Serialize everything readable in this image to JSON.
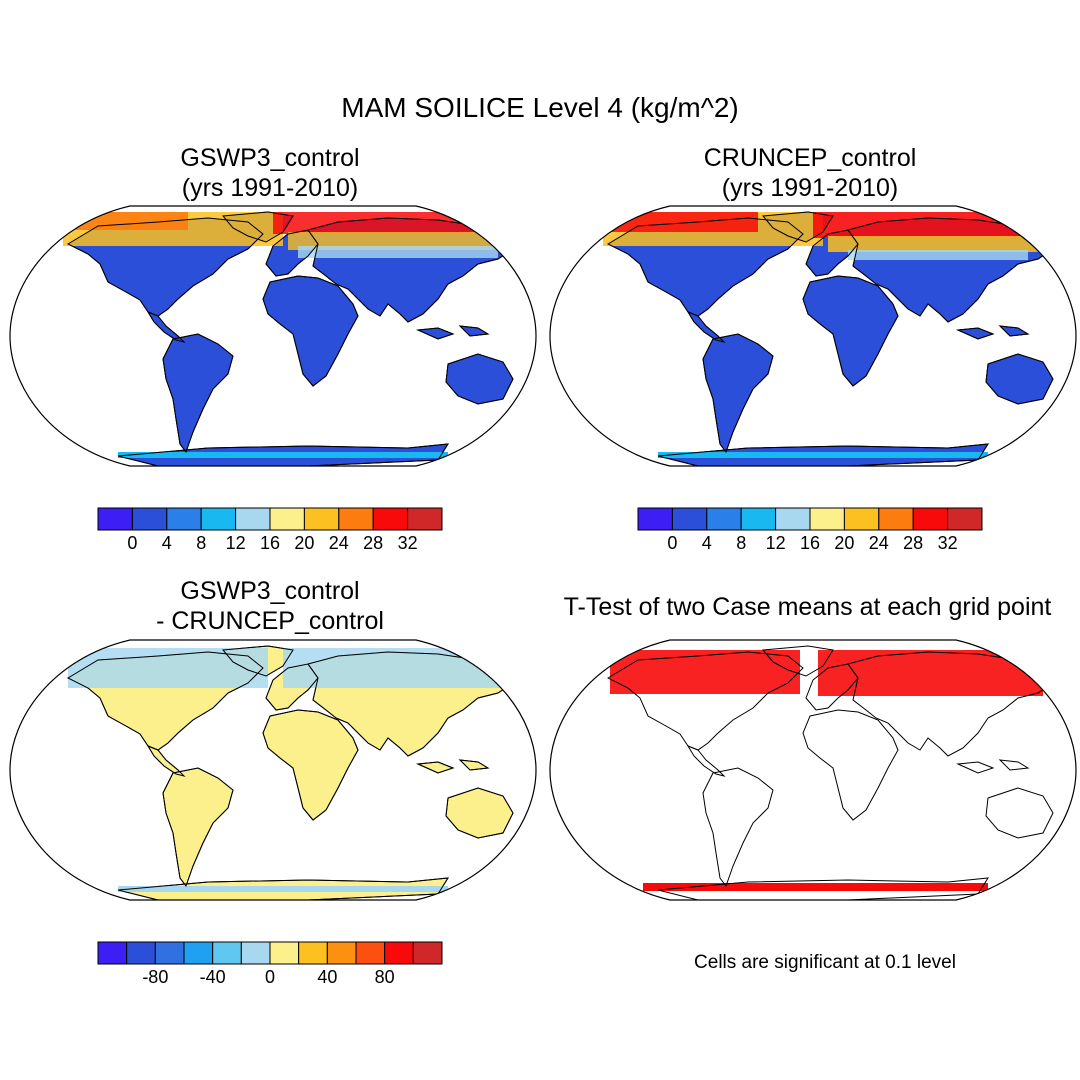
{
  "figure": {
    "title": "MAM SOILICE Level 4 (kg/m^2)"
  },
  "panels": [
    {
      "id": "p1",
      "title_line1": "GSWP3_control",
      "title_line2": "(yrs 1991-2010)"
    },
    {
      "id": "p2",
      "title_line1": "CRUNCEP_control",
      "title_line2": "(yrs 1991-2010)"
    },
    {
      "id": "p3",
      "title_line1": "GSWP3_control",
      "title_line2": "- CRUNCEP_control"
    },
    {
      "id": "p4",
      "title_line1": "T-Test of two Case means at each grid point",
      "note": "Cells are significant at 0.1 level"
    }
  ],
  "colorbars": {
    "absolute": {
      "colors": [
        "#3d1ff5",
        "#2b4fd8",
        "#2a80e8",
        "#1ab8f0",
        "#a8d8f0",
        "#fcf08c",
        "#fcc020",
        "#fc7c10",
        "#f80a0a",
        "#d02828"
      ],
      "labels": [
        "0",
        "4",
        "8",
        "12",
        "16",
        "20",
        "24",
        "28",
        "32"
      ]
    },
    "difference": {
      "colors": [
        "#3d1ff5",
        "#2b4fd8",
        "#3070e0",
        "#20a0f0",
        "#60c8f0",
        "#a8d8f0",
        "#fcf08c",
        "#fcc020",
        "#fc9010",
        "#fc5010",
        "#f80a0a",
        "#d02828"
      ],
      "labels": [
        "-80",
        "-40",
        "0",
        "40",
        "80"
      ]
    }
  },
  "chart_data": [
    {
      "type": "heatmap",
      "projection": "Robinson (global)",
      "title": "GSWP3_control (yrs 1991-2010)",
      "units": "kg/m^2",
      "colorbar_levels": [
        0,
        4,
        8,
        12,
        16,
        20,
        24,
        28,
        32
      ],
      "description_values": {
        "low_latitudes": "0-4",
        "northern_high_latitudes": "12-36",
        "antarctica_edge": "12-36"
      }
    },
    {
      "type": "heatmap",
      "projection": "Robinson (global)",
      "title": "CRUNCEP_control (yrs 1991-2010)",
      "units": "kg/m^2",
      "colorbar_levels": [
        0,
        4,
        8,
        12,
        16,
        20,
        24,
        28,
        32
      ],
      "description_values": {
        "low_latitudes": "0-4",
        "northern_high_latitudes": "16-36",
        "antarctica_edge": "12-36"
      }
    },
    {
      "type": "heatmap",
      "projection": "Robinson (global)",
      "title": "GSWP3_control - CRUNCEP_control",
      "colorbar_levels": [
        -80,
        -40,
        0,
        40,
        80
      ],
      "description_values": {
        "low_latitudes": "0-20",
        "northern_high_latitudes": "-20-0"
      }
    },
    {
      "type": "heatmap",
      "projection": "Robinson (global)",
      "title": "T-Test of two Case means at each grid point",
      "significance_level": 0.1,
      "significant_color": "#f80a0a"
    }
  ]
}
